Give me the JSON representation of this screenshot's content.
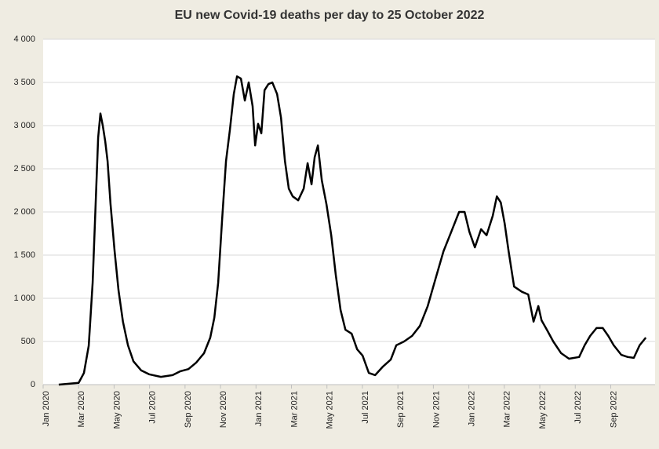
{
  "chart_data": {
    "type": "line",
    "title": "EU new Covid-19 deaths per day to 25 October 2022",
    "x": [
      0.88,
      2.0,
      2.3,
      2.57,
      2.79,
      2.96,
      3.1,
      3.23,
      3.36,
      3.5,
      3.63,
      3.8,
      4.03,
      4.25,
      4.5,
      4.78,
      5.09,
      5.53,
      5.97,
      6.64,
      7.3,
      7.74,
      8.19,
      8.63,
      9.07,
      9.42,
      9.65,
      9.87,
      10.09,
      10.31,
      10.53,
      10.75,
      10.93,
      11.15,
      11.37,
      11.59,
      11.81,
      11.95,
      12.12,
      12.3,
      12.48,
      12.7,
      12.92,
      13.19,
      13.41,
      13.63,
      13.85,
      14.07,
      14.38,
      14.69,
      14.91,
      15.13,
      15.31,
      15.49,
      15.71,
      15.97,
      16.24,
      16.5,
      16.77,
      17.04,
      17.39,
      17.7,
      18.01,
      18.36,
      18.72,
      19.16,
      19.6,
      19.91,
      20.35,
      20.8,
      21.24,
      21.68,
      22.12,
      22.57,
      23.01,
      23.45,
      23.76,
      24.03,
      24.34,
      24.69,
      25.0,
      25.35,
      25.58,
      25.8,
      26.02,
      26.24,
      26.55,
      27.0,
      27.35,
      27.65,
      27.92,
      28.1,
      28.4,
      28.76,
      29.2,
      29.65,
      30.22,
      30.53,
      30.84,
      31.2,
      31.55,
      31.86,
      32.17,
      32.6,
      32.96,
      33.3,
      33.63,
      33.98
    ],
    "series": [
      {
        "color": "#000000",
        "values": [
          0,
          20,
          135,
          450,
          1180,
          2090,
          2860,
          3140,
          3000,
          2820,
          2590,
          2090,
          1545,
          1090,
          730,
          455,
          270,
          165,
          120,
          90,
          110,
          155,
          180,
          255,
          365,
          545,
          775,
          1180,
          1910,
          2590,
          2955,
          3365,
          3570,
          3545,
          3290,
          3500,
          3225,
          2770,
          3020,
          2910,
          3410,
          3480,
          3500,
          3365,
          3090,
          2590,
          2270,
          2180,
          2135,
          2270,
          2565,
          2320,
          2635,
          2770,
          2365,
          2090,
          1730,
          1270,
          865,
          635,
          590,
          410,
          335,
          135,
          110,
          210,
          290,
          455,
          500,
          565,
          680,
          910,
          1225,
          1545,
          1770,
          2000,
          2000,
          1770,
          1590,
          1800,
          1730,
          1955,
          2180,
          2110,
          1865,
          1545,
          1135,
          1075,
          1045,
          730,
          910,
          745,
          635,
          500,
          365,
          300,
          320,
          455,
          565,
          655,
          655,
          565,
          455,
          345,
          320,
          310,
          455,
          545
        ]
      }
    ],
    "xlim": [
      0,
      34.5
    ],
    "xticks": [
      {
        "value": 0,
        "label": "Jan 2020"
      },
      {
        "value": 2,
        "label": "Mar 2020"
      },
      {
        "value": 4,
        "label": "May 2020"
      },
      {
        "value": 6,
        "label": "Jul 2020"
      },
      {
        "value": 8,
        "label": "Sep 2020"
      },
      {
        "value": 10,
        "label": "Nov 2020"
      },
      {
        "value": 12,
        "label": "Jan 2021"
      },
      {
        "value": 14,
        "label": "Mar 2021"
      },
      {
        "value": 16,
        "label": "May 2021"
      },
      {
        "value": 18,
        "label": "Jul 2021"
      },
      {
        "value": 20,
        "label": "Sep 2021"
      },
      {
        "value": 22,
        "label": "Nov 2021"
      },
      {
        "value": 24,
        "label": "Jan 2022"
      },
      {
        "value": 26,
        "label": "Mar 2022"
      },
      {
        "value": 28,
        "label": "May 2022"
      },
      {
        "value": 30,
        "label": "Jul 2022"
      },
      {
        "value": 32,
        "label": "Sep 2022"
      }
    ],
    "ylim": [
      0,
      4000
    ],
    "yticks": [
      0,
      500,
      {
        "value": 1000,
        "label": "1 000"
      },
      {
        "value": 1500,
        "label": "1 500"
      },
      {
        "value": 2000,
        "label": "2 000"
      },
      {
        "value": 2500,
        "label": "2 500"
      },
      {
        "value": 3000,
        "label": "3 000"
      },
      {
        "value": 3500,
        "label": "3 500"
      },
      {
        "value": 4000,
        "label": "4 000"
      }
    ],
    "grid": true
  }
}
